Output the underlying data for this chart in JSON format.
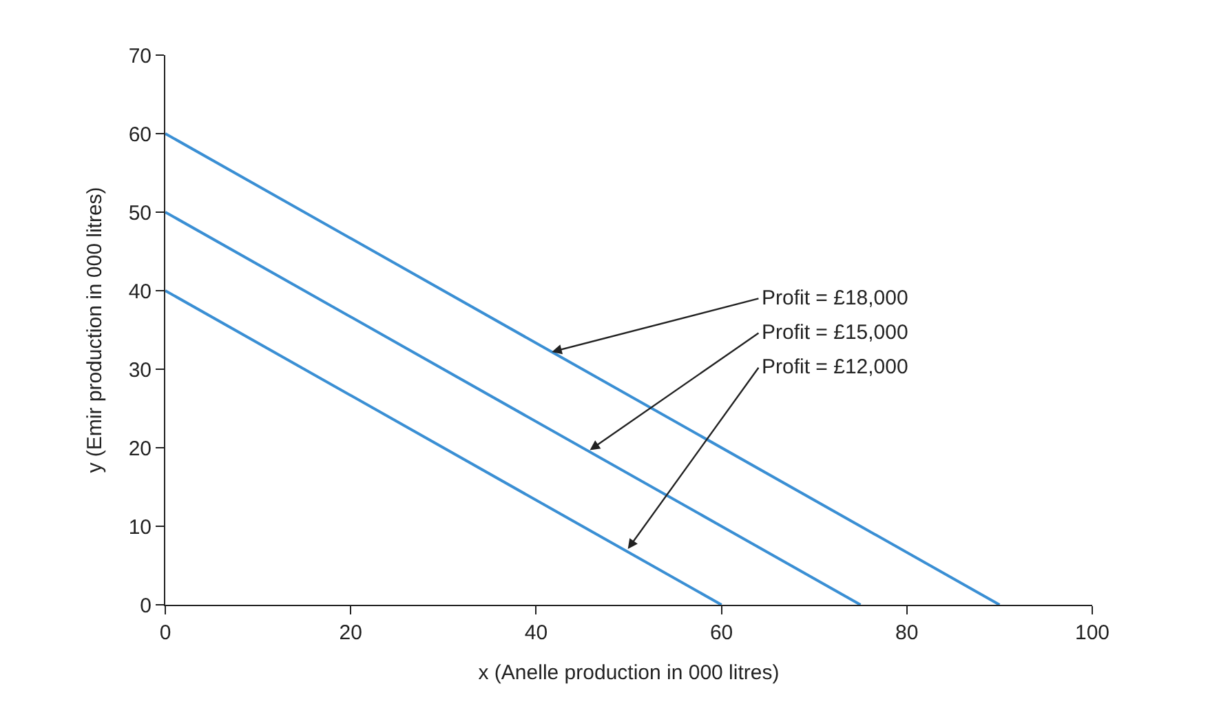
{
  "chart_data": {
    "type": "line",
    "xlabel": "x (Anelle production in 000 litres)",
    "ylabel": "y (Emir production in 000 litres)",
    "series": [
      {
        "color": "#3a8fd4",
        "x": [
          0,
          90
        ],
        "values": [
          60,
          0
        ]
      },
      {
        "color": "#3a8fd4",
        "x": [
          0,
          75
        ],
        "values": [
          50,
          0
        ]
      },
      {
        "color": "#3a8fd4",
        "x": [
          0,
          60
        ],
        "values": [
          40,
          0
        ]
      }
    ],
    "xlim": [
      0,
      100
    ],
    "xticks": [
      0,
      20,
      40,
      60,
      80,
      100
    ],
    "ylim": [
      0,
      70
    ],
    "yticks": [
      0,
      10,
      20,
      30,
      40,
      50,
      60,
      70
    ],
    "marker": "none",
    "line_style": "solid",
    "annotations": [
      {
        "text": "Profit = £18,000",
        "x": 41.7,
        "y": 32.2
      },
      {
        "text": "Profit = £15,000",
        "x": 45.8,
        "y": 19.7
      },
      {
        "text": "Profit = £12,000",
        "x": 49.9,
        "y": 7.1
      }
    ]
  }
}
